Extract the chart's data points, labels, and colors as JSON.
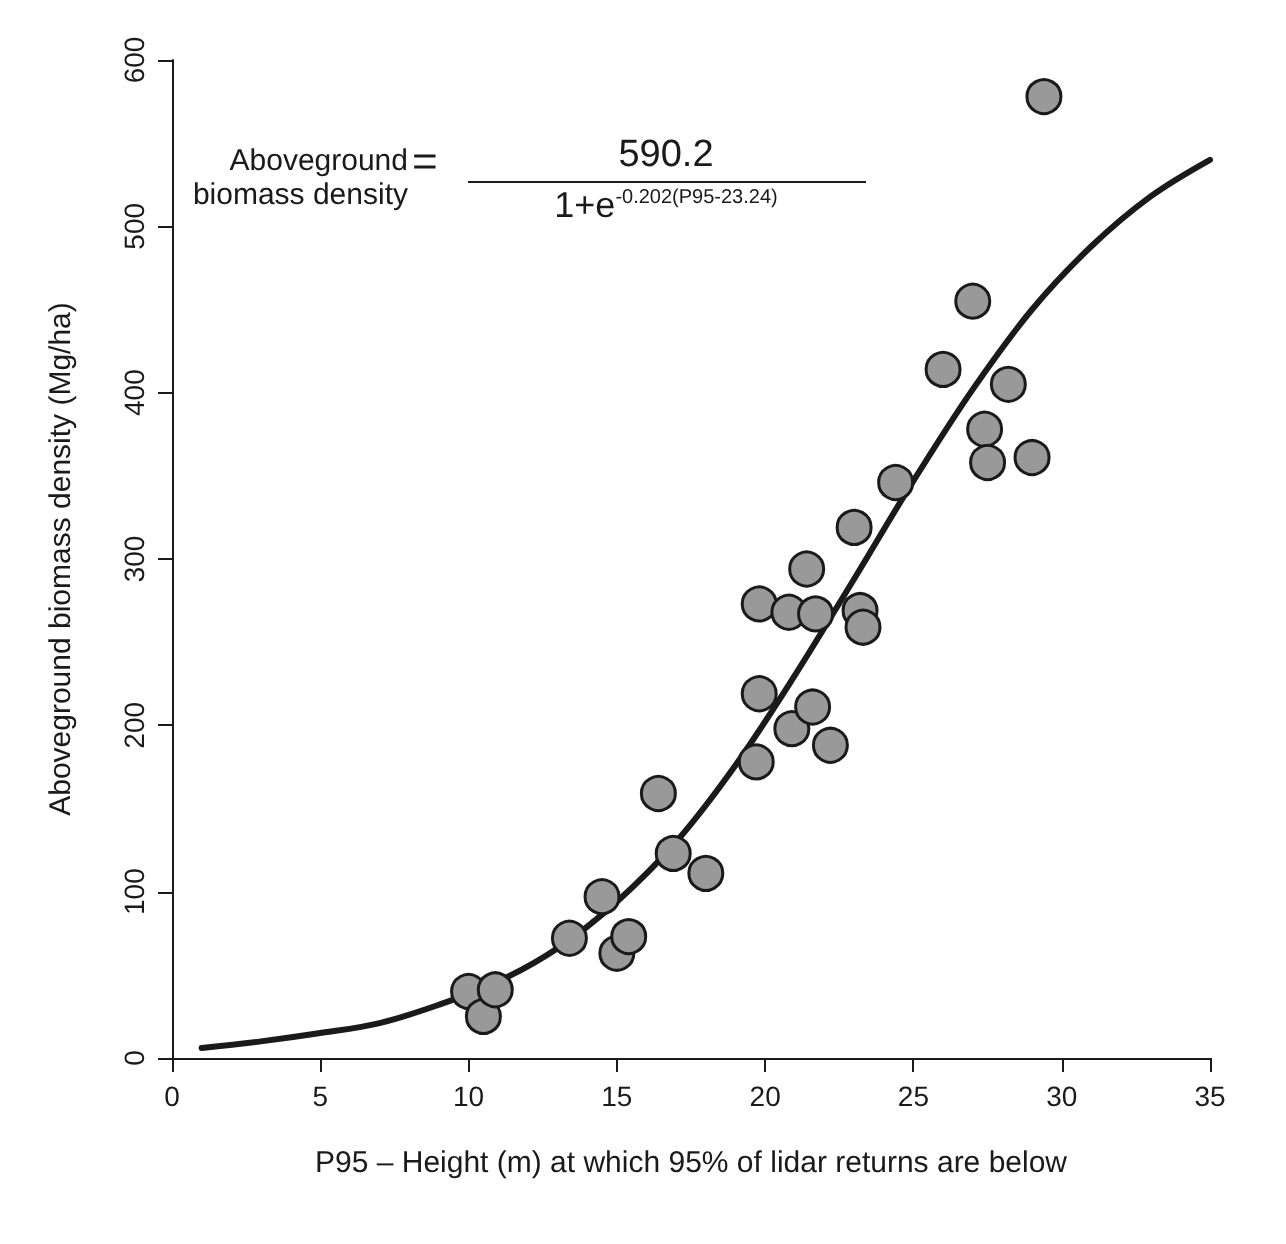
{
  "chart_data": {
    "type": "scatter",
    "xlabel": "P95 – Height (m) at which 95% of lidar returns are below",
    "ylabel": "Aboveground biomass density (Mg/ha)",
    "xlim": [
      0,
      35
    ],
    "xticks": [
      0,
      5,
      10,
      15,
      20,
      25,
      30,
      35
    ],
    "ylim": [
      0,
      600
    ],
    "yticks": [
      0,
      100,
      200,
      300,
      400,
      500,
      600
    ],
    "grid": false,
    "annotations": [
      "Aboveground\nbiomass density",
      "=",
      "590.2",
      "1+e$^{-0.202(P95-23.24)}$"
    ],
    "series": [
      {
        "marker": "circle",
        "color": "#999999",
        "x": [
          10,
          10.5,
          10.9,
          13.4,
          14.5,
          15,
          15.4,
          16.4,
          16.9,
          18,
          19.7,
          19.8,
          19.8,
          20.8,
          20.9,
          21.4,
          21.6,
          21.7,
          22.2,
          23,
          23.2,
          23.3,
          24.4,
          26,
          27,
          27.4,
          27.5,
          28.2,
          29,
          29.4
        ],
        "values": [
          40,
          25,
          41,
          72,
          97,
          63,
          73,
          159,
          123,
          111,
          178,
          219,
          273,
          268,
          198,
          294,
          211,
          267,
          188,
          319,
          269,
          259,
          346,
          414,
          455,
          378,
          358,
          405,
          361,
          578
        ]
      },
      {
        "type": "line",
        "marker": "none",
        "line_style": "solid",
        "color": "#1a1a1a",
        "x": [
          1,
          3,
          5,
          7,
          9,
          11,
          13,
          15,
          17,
          19,
          21,
          23,
          25,
          27,
          29,
          31,
          33,
          35
        ],
        "values": [
          6,
          10,
          15,
          21,
          32,
          46,
          66,
          94,
          130,
          176,
          230,
          288,
          347,
          402,
          450,
          488,
          518,
          540
        ]
      }
    ]
  }
}
